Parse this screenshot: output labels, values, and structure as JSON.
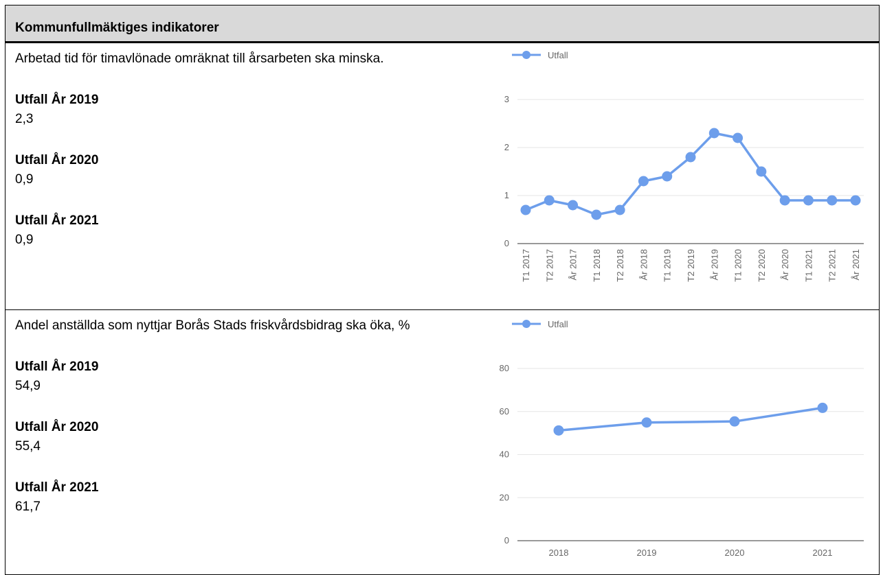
{
  "table": {
    "title": "Kommunfullmäktiges indikatorer",
    "rows": [
      {
        "description": "Arbetad tid för timavlönade omräknat till årsarbeten ska minska.",
        "items": [
          {
            "label": "Utfall År 2019",
            "value": "2,3"
          },
          {
            "label": "Utfall År 2020",
            "value": "0,9"
          },
          {
            "label": "Utfall År 2021",
            "value": "0,9"
          }
        ]
      },
      {
        "description": "Andel anställda som nyttjar Borås Stads friskvårdsbidrag ska öka, %",
        "items": [
          {
            "label": "Utfall År 2019",
            "value": "54,9"
          },
          {
            "label": "Utfall År 2020",
            "value": "55,4"
          },
          {
            "label": "Utfall År 2021",
            "value": "61,7"
          }
        ]
      }
    ]
  },
  "chart_data": [
    {
      "type": "line",
      "categories": [
        "T1 2017",
        "T2 2017",
        "År 2017",
        "T1 2018",
        "T2 2018",
        "År 2018",
        "T1 2019",
        "T2 2019",
        "År 2019",
        "T1 2020",
        "T2 2020",
        "År 2020",
        "T1 2021",
        "T2 2021",
        "År 2021"
      ],
      "series": [
        {
          "name": "Utfall",
          "color": "#6d9eeb",
          "values": [
            0.7,
            0.9,
            0.8,
            0.6,
            0.7,
            1.3,
            1.4,
            1.8,
            2.3,
            2.2,
            1.5,
            0.9,
            0.9,
            0.9,
            0.9
          ]
        }
      ],
      "ylim": [
        0,
        3
      ],
      "yticks": [
        0,
        1,
        2,
        3
      ],
      "grid": true,
      "legend": "top-left"
    },
    {
      "type": "line",
      "categories": [
        "2018",
        "2019",
        "2020",
        "2021"
      ],
      "series": [
        {
          "name": "Utfall",
          "color": "#6d9eeb",
          "values": [
            51.2,
            54.9,
            55.4,
            61.7
          ]
        }
      ],
      "ylim": [
        0,
        80
      ],
      "yticks": [
        0,
        20,
        40,
        60,
        80
      ],
      "grid": true,
      "legend": "top-left"
    }
  ]
}
